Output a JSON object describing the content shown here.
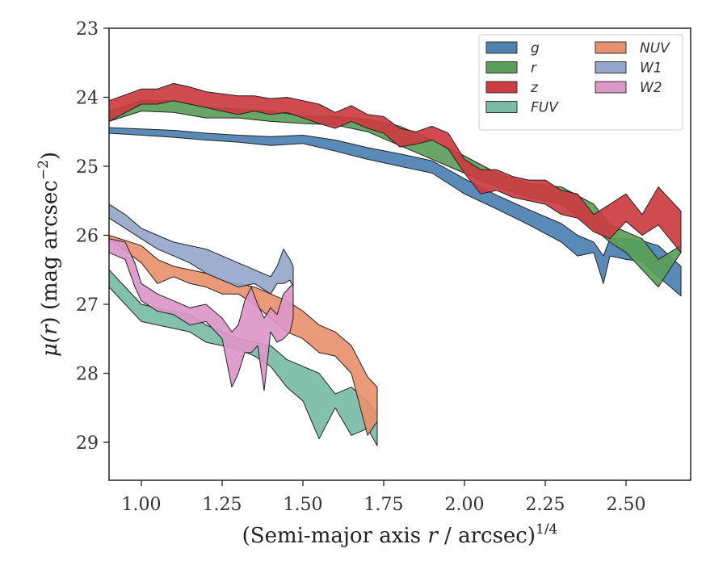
{
  "chart_data": {
    "type": "area",
    "xlabel": "(Semi-major axis r / arcsec)",
    "xlabel_parts": {
      "open": "(Semi-major axis ",
      "var": "r",
      "rest": " / arcsec)",
      "sup": "1/4"
    },
    "ylabel": "μ(r) (mag arcsec⁻²)",
    "ylabel_parts": {
      "mu": "μ(",
      "var": "r",
      "mid": ") (mag arcsec",
      "sup": "−2",
      "close": ")"
    },
    "xlim": [
      0.9,
      2.7
    ],
    "ylim": [
      29.55,
      23.0
    ],
    "y_inverted": true,
    "xticks": [
      1.0,
      1.25,
      1.5,
      1.75,
      2.0,
      2.25,
      2.5
    ],
    "xtick_labels": [
      "1.00",
      "1.25",
      "1.50",
      "1.75",
      "2.00",
      "2.25",
      "2.50"
    ],
    "yticks": [
      23,
      24,
      25,
      26,
      27,
      28,
      29
    ],
    "ytick_labels": [
      "23",
      "24",
      "25",
      "26",
      "27",
      "28",
      "29"
    ],
    "grid": false,
    "legend_position": "top-right",
    "legend_columns": 2,
    "series": [
      {
        "name": "g",
        "color": "#4c81b2",
        "x": [
          0.9,
          1.0,
          1.1,
          1.2,
          1.3,
          1.4,
          1.5,
          1.6,
          1.7,
          1.8,
          1.9,
          2.0,
          2.1,
          2.2,
          2.3,
          2.35,
          2.4,
          2.43,
          2.45,
          2.5,
          2.55,
          2.6,
          2.67
        ],
        "lo": [
          24.44,
          24.46,
          24.48,
          24.52,
          24.55,
          24.57,
          24.55,
          24.62,
          24.73,
          24.82,
          24.92,
          25.18,
          25.42,
          25.63,
          25.83,
          26.0,
          26.1,
          26.3,
          26.05,
          26.05,
          26.08,
          26.15,
          26.45
        ],
        "hi": [
          24.52,
          24.55,
          24.58,
          24.62,
          24.65,
          24.7,
          24.67,
          24.78,
          24.9,
          25.0,
          25.1,
          25.4,
          25.62,
          25.85,
          26.1,
          26.3,
          26.25,
          26.7,
          26.3,
          26.35,
          26.38,
          26.6,
          26.88
        ]
      },
      {
        "name": "r",
        "color": "#5a9e59",
        "x": [
          0.9,
          1.0,
          1.1,
          1.2,
          1.3,
          1.4,
          1.5,
          1.6,
          1.7,
          1.8,
          1.9,
          2.0,
          2.1,
          2.2,
          2.3,
          2.4,
          2.45,
          2.5,
          2.55,
          2.6,
          2.67
        ],
        "lo": [
          24.2,
          24.05,
          24.05,
          24.15,
          24.17,
          24.2,
          24.27,
          24.28,
          24.32,
          24.42,
          24.62,
          24.85,
          25.1,
          25.25,
          25.3,
          25.55,
          25.85,
          25.95,
          26.05,
          26.35,
          26.15
        ],
        "hi": [
          24.35,
          24.2,
          24.22,
          24.3,
          24.3,
          24.35,
          24.38,
          24.4,
          24.5,
          24.7,
          24.9,
          25.1,
          25.3,
          25.45,
          25.55,
          25.9,
          26.1,
          26.25,
          26.5,
          26.75,
          26.25
        ]
      },
      {
        "name": "z",
        "color": "#cc3c40",
        "x": [
          0.9,
          1.0,
          1.05,
          1.1,
          1.15,
          1.2,
          1.25,
          1.3,
          1.35,
          1.4,
          1.45,
          1.5,
          1.55,
          1.6,
          1.65,
          1.7,
          1.75,
          1.8,
          1.85,
          1.9,
          1.95,
          2.0,
          2.05,
          2.1,
          2.15,
          2.2,
          2.25,
          2.3,
          2.35,
          2.4,
          2.45,
          2.5,
          2.55,
          2.6,
          2.67
        ],
        "lo": [
          24.05,
          23.88,
          23.88,
          23.8,
          23.85,
          23.92,
          23.95,
          23.98,
          23.98,
          24.02,
          24.0,
          24.05,
          24.1,
          24.22,
          24.12,
          24.25,
          24.28,
          24.45,
          24.5,
          24.42,
          24.52,
          24.9,
          25.05,
          25.05,
          25.15,
          25.2,
          25.2,
          25.35,
          25.4,
          25.7,
          25.55,
          25.4,
          25.7,
          25.3,
          25.65
        ],
        "hi": [
          24.35,
          24.1,
          24.1,
          24.05,
          24.1,
          24.15,
          24.2,
          24.25,
          24.2,
          24.25,
          24.22,
          24.3,
          24.38,
          24.45,
          24.35,
          24.45,
          24.52,
          24.72,
          24.68,
          24.62,
          24.75,
          25.1,
          25.4,
          25.35,
          25.45,
          25.5,
          25.55,
          25.7,
          25.75,
          25.95,
          26.05,
          25.8,
          26.0,
          25.85,
          26.25
        ]
      },
      {
        "name": "FUV",
        "color": "#7abca6",
        "x": [
          0.9,
          0.95,
          1.0,
          1.05,
          1.1,
          1.15,
          1.2,
          1.25,
          1.3,
          1.35,
          1.4,
          1.45,
          1.5,
          1.55,
          1.6,
          1.65,
          1.7,
          1.73
        ],
        "lo": [
          26.5,
          26.75,
          27.0,
          27.05,
          27.1,
          27.15,
          27.3,
          27.4,
          27.5,
          27.55,
          27.6,
          27.8,
          27.9,
          28.0,
          28.3,
          28.2,
          28.4,
          28.6
        ],
        "hi": [
          26.75,
          27.0,
          27.25,
          27.3,
          27.35,
          27.4,
          27.55,
          27.6,
          27.65,
          27.75,
          27.9,
          28.2,
          28.4,
          28.95,
          28.5,
          28.9,
          28.8,
          29.05
        ]
      },
      {
        "name": "NUV",
        "color": "#e8916c",
        "x": [
          0.9,
          1.0,
          1.05,
          1.1,
          1.15,
          1.2,
          1.25,
          1.3,
          1.35,
          1.4,
          1.45,
          1.5,
          1.55,
          1.6,
          1.65,
          1.7,
          1.73
        ],
        "lo": [
          26.0,
          26.15,
          26.35,
          26.45,
          26.5,
          26.55,
          26.65,
          26.7,
          26.75,
          26.85,
          26.95,
          27.1,
          27.3,
          27.4,
          27.6,
          28.05,
          28.2
        ],
        "hi": [
          26.05,
          26.4,
          26.7,
          26.6,
          26.7,
          26.75,
          26.85,
          26.85,
          27.0,
          27.2,
          27.4,
          27.5,
          27.7,
          27.75,
          28.0,
          28.9,
          28.7
        ]
      },
      {
        "name": "W1",
        "color": "#96a7cb",
        "x": [
          0.9,
          0.95,
          1.0,
          1.05,
          1.1,
          1.15,
          1.2,
          1.25,
          1.3,
          1.35,
          1.4,
          1.42,
          1.44,
          1.46,
          1.47
        ],
        "lo": [
          25.55,
          25.7,
          25.9,
          26.0,
          26.1,
          26.15,
          26.2,
          26.3,
          26.4,
          26.5,
          26.6,
          26.45,
          26.2,
          26.35,
          26.45
        ],
        "hi": [
          25.75,
          25.9,
          26.05,
          26.2,
          26.3,
          26.4,
          26.55,
          26.65,
          26.75,
          26.7,
          26.85,
          26.7,
          26.7,
          26.65,
          26.75
        ]
      },
      {
        "name": "W2",
        "color": "#dc97c8",
        "x": [
          0.9,
          0.95,
          0.98,
          1.0,
          1.05,
          1.1,
          1.15,
          1.2,
          1.25,
          1.28,
          1.3,
          1.32,
          1.34,
          1.36,
          1.38,
          1.4,
          1.42,
          1.44,
          1.46,
          1.47
        ],
        "lo": [
          26.05,
          26.1,
          26.4,
          26.7,
          26.85,
          26.95,
          27.05,
          27.0,
          27.2,
          27.4,
          27.3,
          26.95,
          26.75,
          27.0,
          27.2,
          27.05,
          27.15,
          26.85,
          26.75,
          26.7
        ],
        "hi": [
          26.25,
          26.35,
          26.75,
          26.95,
          27.1,
          27.15,
          27.3,
          27.25,
          27.5,
          28.2,
          28.0,
          27.7,
          27.7,
          27.6,
          28.25,
          27.4,
          27.55,
          27.5,
          27.4,
          27.2
        ]
      }
    ]
  }
}
